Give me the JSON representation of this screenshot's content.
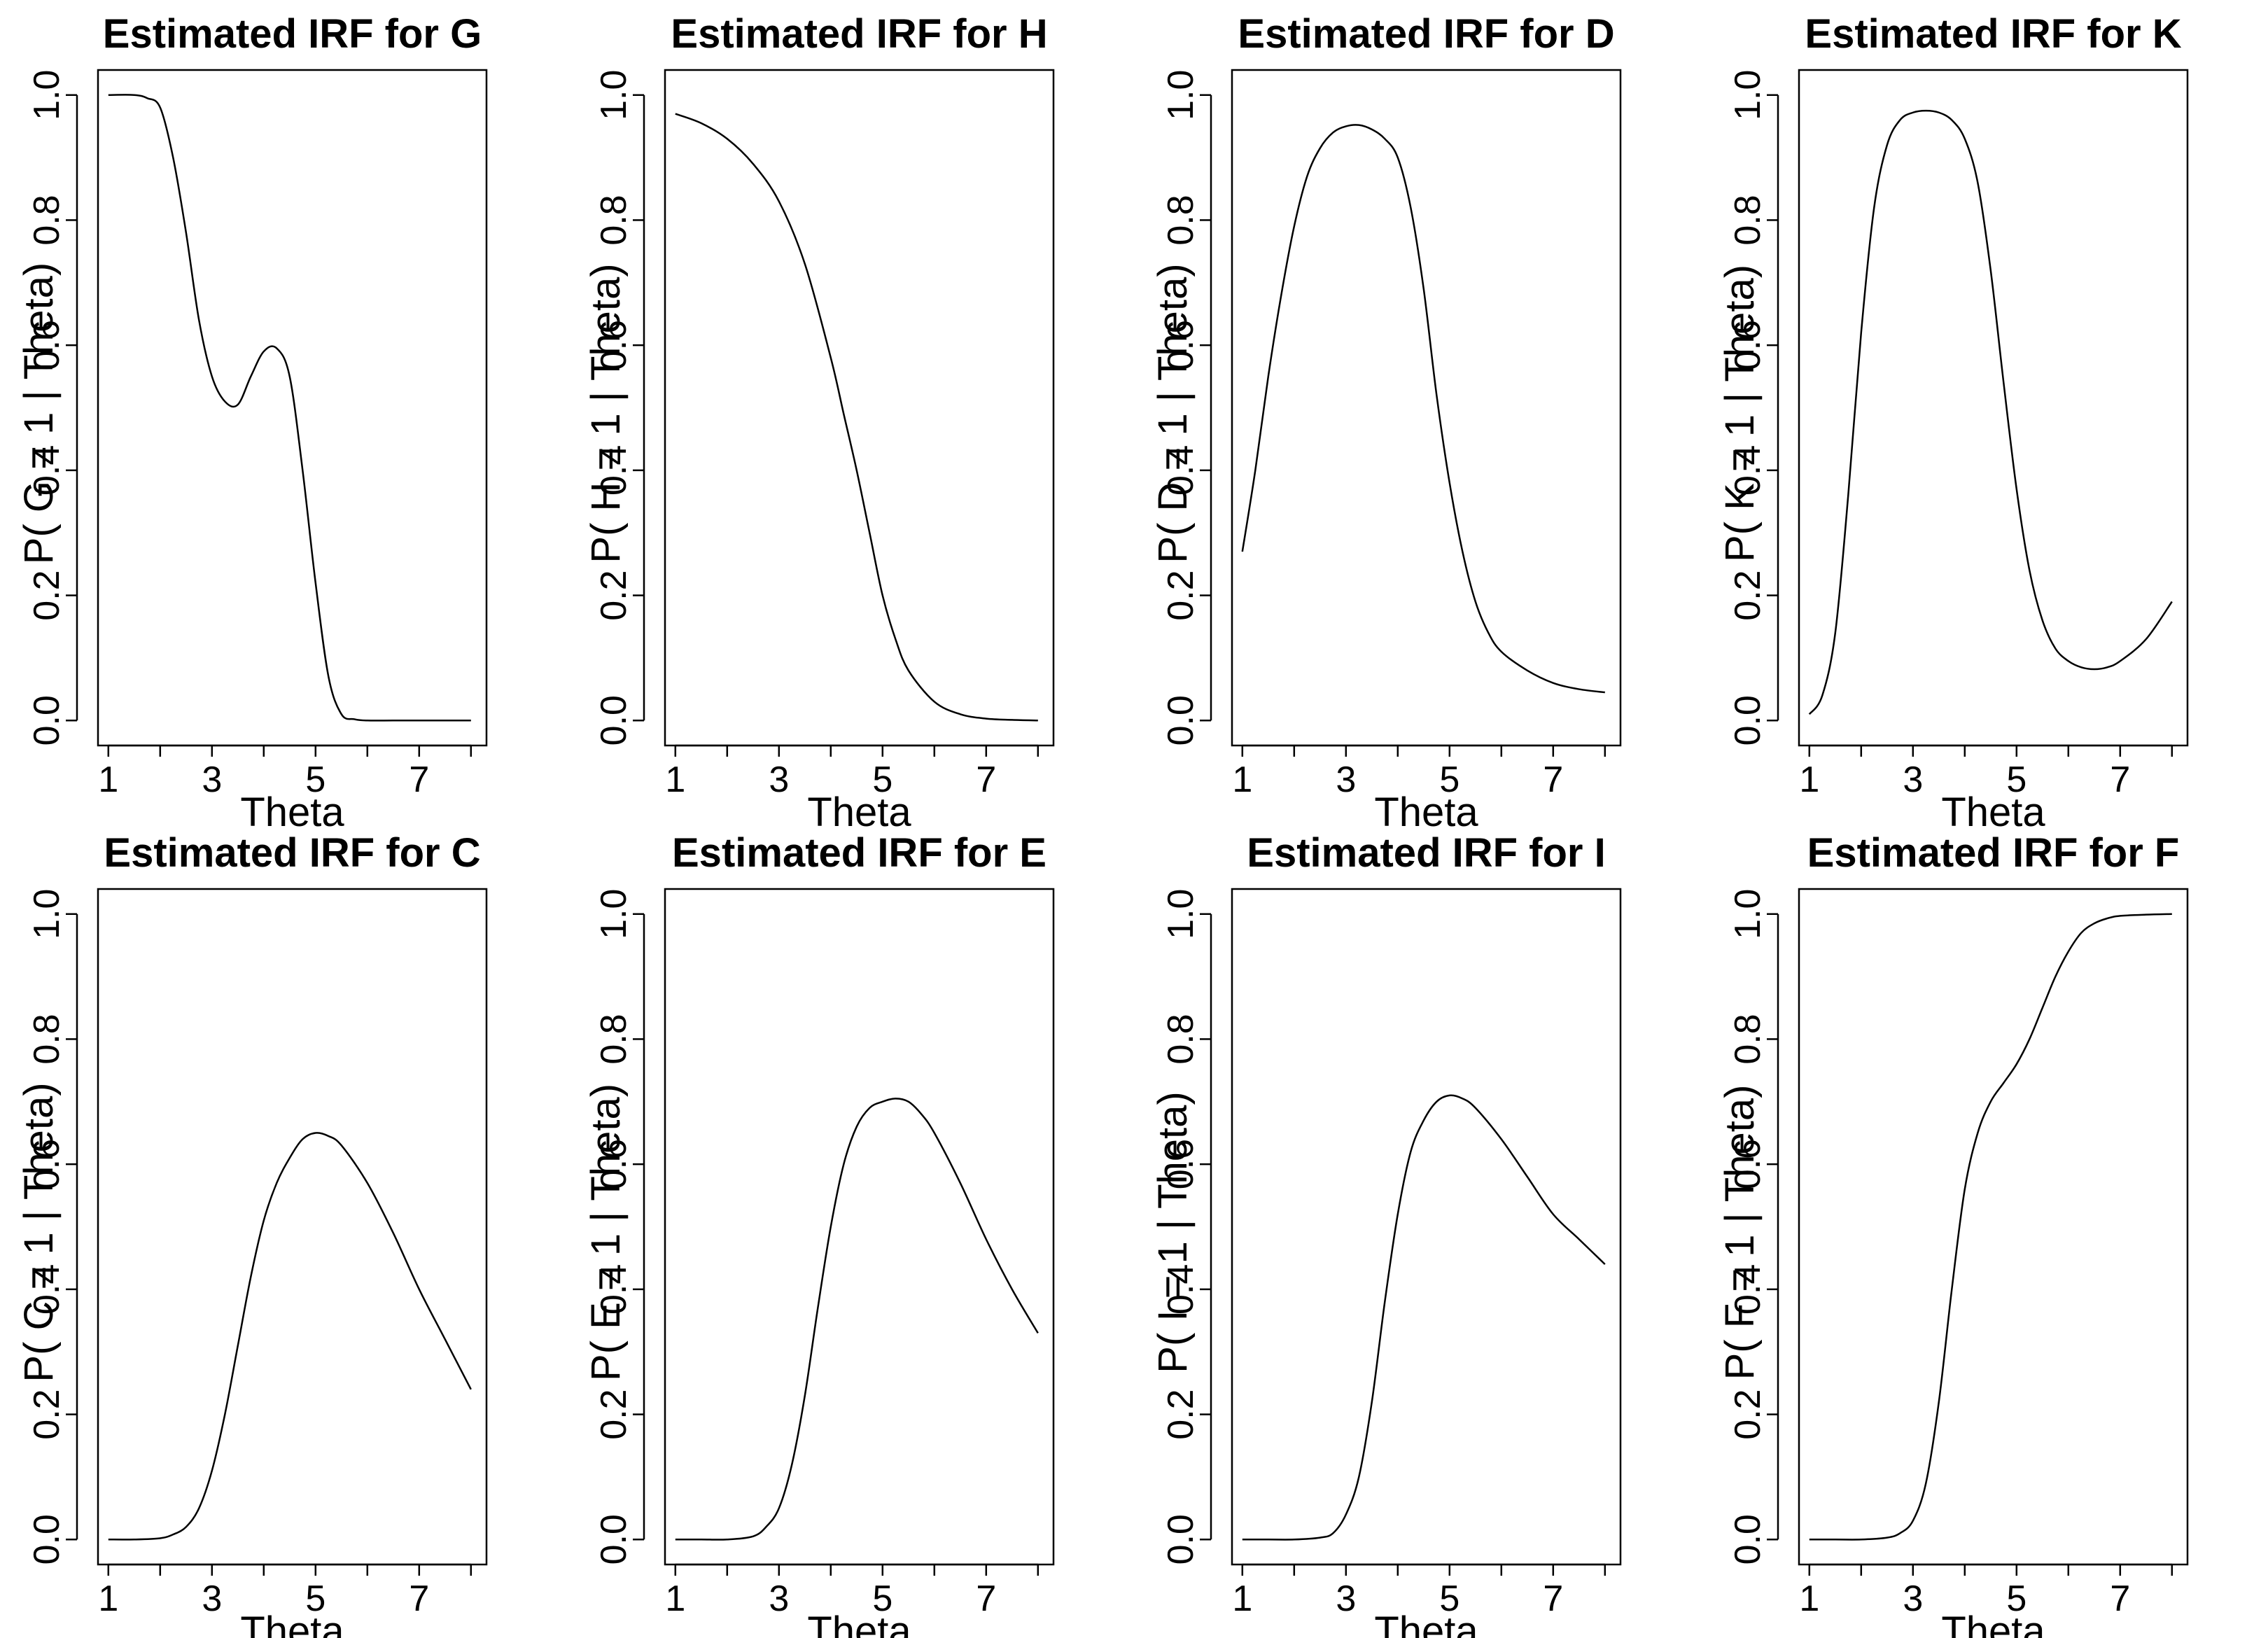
{
  "chart_data": [
    {
      "type": "line",
      "title": "Estimated IRF for G",
      "xlabel": "Theta",
      "ylabel": "P( G = 1 | Theta)",
      "xticks": [
        "1",
        "3",
        "5",
        "7"
      ],
      "yticks": [
        "0.0",
        "0.2",
        "0.4",
        "0.6",
        "0.8",
        "1.0"
      ],
      "xlim": [
        0.8,
        8.3
      ],
      "ylim": [
        -0.04,
        1.04
      ],
      "series": [
        {
          "x": [
            1,
            1.5,
            1.75,
            2,
            2.25,
            2.5,
            2.75,
            3,
            3.25,
            3.5,
            3.75,
            4,
            4.25,
            4.5,
            4.75,
            5,
            5.25,
            5.5,
            5.75,
            6,
            6.5,
            7,
            7.5,
            8
          ],
          "y": [
            1.0,
            1.0,
            0.995,
            0.98,
            0.9,
            0.78,
            0.64,
            0.55,
            0.51,
            0.505,
            0.55,
            0.59,
            0.595,
            0.55,
            0.4,
            0.22,
            0.07,
            0.01,
            0.002,
            0.0,
            0.0,
            0.0,
            0.0,
            0.0
          ]
        }
      ]
    },
    {
      "type": "line",
      "title": "Estimated IRF for H",
      "xlabel": "Theta",
      "ylabel": "P( H = 1 | Theta)",
      "xticks": [
        "1",
        "3",
        "5",
        "7"
      ],
      "yticks": [
        "0.0",
        "0.2",
        "0.4",
        "0.6",
        "0.8",
        "1.0"
      ],
      "xlim": [
        0.8,
        8.3
      ],
      "ylim": [
        -0.04,
        1.04
      ],
      "series": [
        {
          "x": [
            1,
            1.5,
            2,
            2.5,
            3,
            3.5,
            4,
            4.25,
            4.5,
            4.75,
            5,
            5.25,
            5.5,
            6,
            6.5,
            7,
            7.5,
            8
          ],
          "y": [
            0.97,
            0.955,
            0.93,
            0.89,
            0.83,
            0.73,
            0.58,
            0.49,
            0.4,
            0.3,
            0.2,
            0.13,
            0.08,
            0.03,
            0.01,
            0.003,
            0.001,
            0.0
          ]
        }
      ]
    },
    {
      "type": "line",
      "title": "Estimated IRF for D",
      "xlabel": "Theta",
      "ylabel": "P( D = 1 | Theta)",
      "xticks": [
        "1",
        "3",
        "5",
        "7"
      ],
      "yticks": [
        "0.0",
        "0.2",
        "0.4",
        "0.6",
        "0.8",
        "1.0"
      ],
      "xlim": [
        0.8,
        8.3
      ],
      "ylim": [
        -0.04,
        1.04
      ],
      "series": [
        {
          "x": [
            1,
            1.25,
            1.5,
            1.75,
            2,
            2.25,
            2.5,
            2.75,
            3,
            3.25,
            3.5,
            3.75,
            4,
            4.25,
            4.5,
            4.75,
            5,
            5.25,
            5.5,
            5.75,
            6,
            6.5,
            7,
            7.5,
            8
          ],
          "y": [
            0.27,
            0.4,
            0.55,
            0.68,
            0.79,
            0.87,
            0.915,
            0.94,
            0.95,
            0.952,
            0.945,
            0.93,
            0.9,
            0.82,
            0.69,
            0.52,
            0.38,
            0.27,
            0.19,
            0.14,
            0.11,
            0.08,
            0.06,
            0.05,
            0.045
          ]
        }
      ]
    },
    {
      "type": "line",
      "title": "Estimated IRF for K",
      "xlabel": "Theta",
      "ylabel": "P( K = 1 | Theta)",
      "xticks": [
        "1",
        "3",
        "5",
        "7"
      ],
      "yticks": [
        "0.0",
        "0.2",
        "0.4",
        "0.6",
        "0.8",
        "1.0"
      ],
      "xlim": [
        0.8,
        8.3
      ],
      "ylim": [
        -0.04,
        1.04
      ],
      "series": [
        {
          "x": [
            1,
            1.25,
            1.5,
            1.75,
            2,
            2.25,
            2.5,
            2.75,
            3,
            3.25,
            3.5,
            3.75,
            4,
            4.25,
            4.5,
            4.75,
            5,
            5.25,
            5.5,
            5.75,
            6,
            6.25,
            6.5,
            6.75,
            7,
            7.5,
            8
          ],
          "y": [
            0.01,
            0.04,
            0.14,
            0.36,
            0.62,
            0.82,
            0.92,
            0.96,
            0.972,
            0.975,
            0.972,
            0.96,
            0.93,
            0.86,
            0.72,
            0.54,
            0.37,
            0.24,
            0.16,
            0.115,
            0.095,
            0.085,
            0.082,
            0.085,
            0.095,
            0.13,
            0.19
          ]
        }
      ]
    },
    {
      "type": "line",
      "title": "Estimated IRF for C",
      "xlabel": "Theta",
      "ylabel": "P( C = 1 | Theta)",
      "xticks": [
        "1",
        "3",
        "5",
        "7"
      ],
      "yticks": [
        "0.0",
        "0.2",
        "0.4",
        "0.6",
        "0.8",
        "1.0"
      ],
      "xlim": [
        0.8,
        8.3
      ],
      "ylim": [
        -0.04,
        1.04
      ],
      "series": [
        {
          "x": [
            1,
            1.5,
            2,
            2.25,
            2.5,
            2.75,
            3,
            3.25,
            3.5,
            3.75,
            4,
            4.25,
            4.5,
            4.75,
            5,
            5.25,
            5.5,
            6,
            6.5,
            7,
            7.5,
            8
          ],
          "y": [
            0.0,
            0.0,
            0.002,
            0.008,
            0.02,
            0.05,
            0.11,
            0.2,
            0.31,
            0.42,
            0.51,
            0.57,
            0.61,
            0.64,
            0.65,
            0.645,
            0.63,
            0.57,
            0.49,
            0.4,
            0.32,
            0.24
          ]
        }
      ]
    },
    {
      "type": "line",
      "title": "Estimated IRF for E",
      "xlabel": "Theta",
      "ylabel": "P( E = 1 | Theta)",
      "xticks": [
        "1",
        "3",
        "5",
        "7"
      ],
      "yticks": [
        "0.0",
        "0.2",
        "0.4",
        "0.6",
        "0.8",
        "1.0"
      ],
      "xlim": [
        0.8,
        8.3
      ],
      "ylim": [
        -0.04,
        1.04
      ],
      "series": [
        {
          "x": [
            1,
            1.5,
            2,
            2.5,
            2.75,
            3,
            3.25,
            3.5,
            3.75,
            4,
            4.25,
            4.5,
            4.75,
            5,
            5.25,
            5.5,
            5.75,
            6,
            6.5,
            7,
            7.5,
            8
          ],
          "y": [
            0.0,
            0.0,
            0.0,
            0.005,
            0.02,
            0.05,
            0.12,
            0.23,
            0.37,
            0.5,
            0.6,
            0.66,
            0.69,
            0.7,
            0.705,
            0.7,
            0.68,
            0.65,
            0.57,
            0.48,
            0.4,
            0.33
          ]
        }
      ]
    },
    {
      "type": "line",
      "title": "Estimated IRF for I",
      "xlabel": "Theta",
      "ylabel": "P( I = 1 | Theta)",
      "xticks": [
        "1",
        "3",
        "5",
        "7"
      ],
      "yticks": [
        "0.0",
        "0.2",
        "0.4",
        "0.6",
        "0.8",
        "1.0"
      ],
      "xlim": [
        0.8,
        8.3
      ],
      "ylim": [
        -0.04,
        1.04
      ],
      "series": [
        {
          "x": [
            1,
            1.5,
            2,
            2.5,
            2.75,
            3,
            3.25,
            3.5,
            3.75,
            4,
            4.25,
            4.5,
            4.75,
            5,
            5.25,
            5.5,
            6,
            6.5,
            7,
            7.5,
            8
          ],
          "y": [
            0.0,
            0.0,
            0.0,
            0.003,
            0.01,
            0.04,
            0.1,
            0.22,
            0.38,
            0.52,
            0.62,
            0.67,
            0.7,
            0.71,
            0.705,
            0.69,
            0.64,
            0.58,
            0.52,
            0.48,
            0.44
          ]
        }
      ]
    },
    {
      "type": "line",
      "title": "Estimated IRF for F",
      "xlabel": "Theta",
      "ylabel": "P( F = 1 | Theta)",
      "xticks": [
        "1",
        "3",
        "5",
        "7"
      ],
      "yticks": [
        "0.0",
        "0.2",
        "0.4",
        "0.6",
        "0.8",
        "1.0"
      ],
      "xlim": [
        0.8,
        8.3
      ],
      "ylim": [
        -0.04,
        1.04
      ],
      "series": [
        {
          "x": [
            1,
            1.5,
            2,
            2.5,
            2.75,
            3,
            3.25,
            3.5,
            3.75,
            4,
            4.25,
            4.5,
            4.75,
            5,
            5.25,
            5.5,
            5.75,
            6,
            6.25,
            6.5,
            6.75,
            7,
            7.5,
            8
          ],
          "y": [
            0.0,
            0.0,
            0.0,
            0.003,
            0.01,
            0.03,
            0.09,
            0.22,
            0.4,
            0.56,
            0.65,
            0.7,
            0.73,
            0.76,
            0.8,
            0.85,
            0.9,
            0.94,
            0.97,
            0.985,
            0.993,
            0.997,
            0.999,
            1.0
          ]
        }
      ]
    }
  ]
}
